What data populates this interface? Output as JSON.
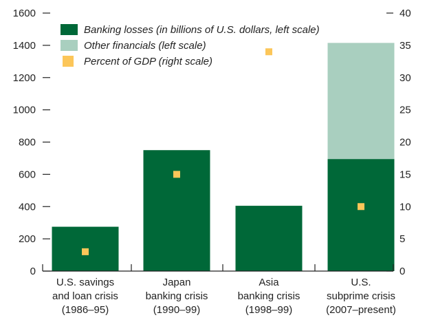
{
  "chart_data": {
    "type": "bar",
    "stacked": true,
    "categories": [
      [
        "U.S. savings",
        "and loan crisis",
        "(1986–95)"
      ],
      [
        "Japan",
        "banking crisis",
        "(1990–99)"
      ],
      [
        "Asia",
        "banking crisis",
        "(1998–99)"
      ],
      [
        "U.S.",
        "subprime crisis",
        "(2007–present)"
      ]
    ],
    "series": [
      {
        "name": "Banking losses (in billions of U.S. dollars, left scale)",
        "axis": "left",
        "kind": "bar",
        "color": "#006838",
        "values": [
          275,
          750,
          405,
          695
        ]
      },
      {
        "name": "Other financials (left scale)",
        "axis": "left",
        "kind": "bar",
        "color": "#a9cfbf",
        "values": [
          0,
          0,
          0,
          720
        ]
      },
      {
        "name": "Percent of GDP (right scale)",
        "axis": "right",
        "kind": "marker",
        "color": "#fcc659",
        "values": [
          3,
          15,
          34,
          10
        ]
      }
    ],
    "left_axis": {
      "ylim": [
        0,
        1600
      ],
      "ticks": [
        0,
        200,
        400,
        600,
        800,
        1000,
        1200,
        1400,
        1600
      ]
    },
    "right_axis": {
      "ylim": [
        0,
        40
      ],
      "ticks": [
        0,
        5,
        10,
        15,
        20,
        25,
        30,
        35,
        40
      ]
    },
    "legend_position": "top-left",
    "grid": false
  }
}
